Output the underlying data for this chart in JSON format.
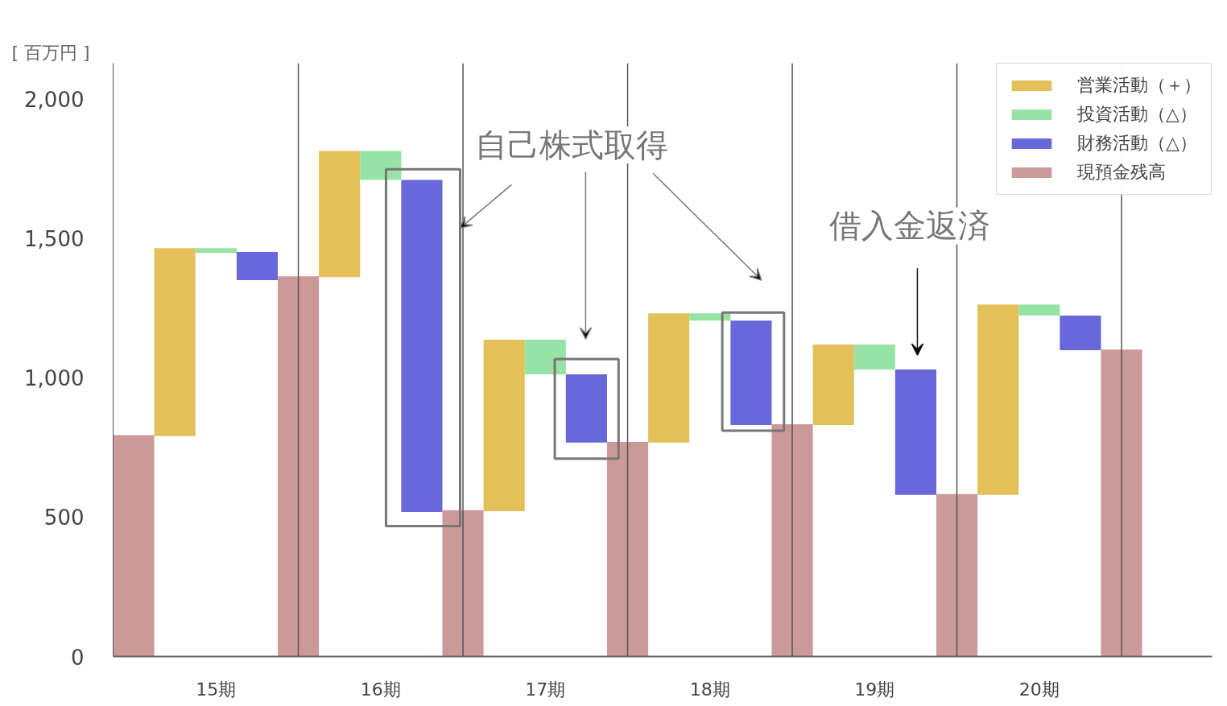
{
  "chart_data": {
    "type": "bar",
    "ylabel": "[ 百万円 ]",
    "annotations": [
      "自己株式取得",
      "借入金返済"
    ],
    "categories": [
      null,
      null,
      "15期",
      null,
      null,
      null,
      "16期",
      null,
      null,
      null,
      "17期",
      null,
      null,
      null,
      "18期",
      null,
      null,
      null,
      "19期",
      null,
      null,
      null,
      "20期",
      null,
      null
    ],
    "ylim": [
      0,
      2130
    ],
    "yticks": [
      0,
      500,
      {
        "value": 1000,
        "label": "1,000"
      },
      {
        "value": 1500,
        "label": "1,500"
      },
      {
        "value": 2000,
        "label": "2,000"
      }
    ],
    "grid": "x",
    "legend": "top right",
    "series": [
      {
        "name": "営業活動（＋）",
        "color": "#e3c05a",
        "base": [
          null,
          791,
          null,
          null,
          null,
          1362,
          null,
          null,
          null,
          522,
          null,
          null,
          null,
          768,
          null,
          null,
          null,
          831,
          null,
          null,
          null,
          580,
          null,
          null,
          null
        ],
        "values": [
          null,
          675,
          null,
          null,
          null,
          453,
          null,
          null,
          null,
          615,
          null,
          null,
          null,
          464,
          null,
          null,
          null,
          289,
          null,
          null,
          null,
          684,
          null,
          null,
          null
        ]
      },
      {
        "name": "投資活動（△）",
        "color": "#96e3a5",
        "base": [
          null,
          null,
          1466,
          null,
          null,
          null,
          1815,
          null,
          null,
          null,
          1137,
          null,
          null,
          null,
          1232,
          null,
          null,
          null,
          1120,
          null,
          null,
          null,
          1264,
          null,
          null
        ],
        "values": [
          null,
          null,
          -17,
          null,
          null,
          null,
          -104,
          null,
          null,
          null,
          -124,
          null,
          null,
          null,
          -26,
          null,
          null,
          null,
          -90,
          null,
          null,
          null,
          -40,
          null,
          null
        ]
      },
      {
        "name": "財務活動（△）",
        "color": "#6868db",
        "base": [
          null,
          null,
          null,
          1452,
          null,
          null,
          null,
          1711,
          null,
          null,
          null,
          1013,
          null,
          null,
          null,
          1206,
          null,
          null,
          null,
          1030,
          null,
          null,
          null,
          1224,
          null
        ],
        "values": [
          null,
          null,
          null,
          -101,
          null,
          null,
          null,
          -1192,
          null,
          null,
          null,
          -245,
          null,
          null,
          null,
          -375,
          null,
          null,
          null,
          -450,
          null,
          null,
          null,
          -124,
          null
        ]
      },
      {
        "name": "現預金残高",
        "color": "#cc9999",
        "values": [
          795,
          null,
          null,
          null,
          1365,
          null,
          null,
          null,
          525,
          null,
          null,
          null,
          770,
          null,
          null,
          null,
          834,
          null,
          null,
          null,
          583,
          null,
          null,
          null,
          1102
        ]
      }
    ]
  }
}
